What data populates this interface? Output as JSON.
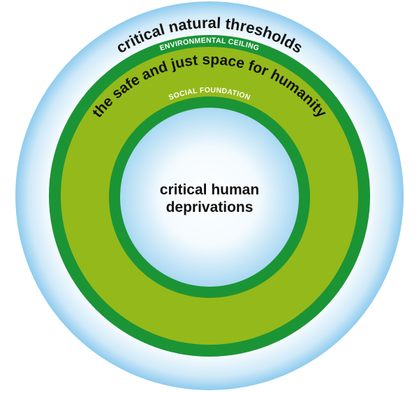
{
  "labels": {
    "outer": "critical natural thresholds",
    "ceiling": "ENVIRONMENTAL CEILING",
    "band": "the safe and just space for humanity",
    "foundation": "SOCIAL FOUNDATION",
    "center_line1": "critical human",
    "center_line2": "deprivations"
  },
  "colors": {
    "outer_glow_edge": "#8ecbee",
    "outer_glow_inner": "#ffffff",
    "dark_green": "#1b9436",
    "lime_green": "#94b91a",
    "center_edge": "#a9d8f2",
    "center_core": "#ffffff",
    "text_dark": "#111111",
    "text_light": "#ffffff"
  }
}
